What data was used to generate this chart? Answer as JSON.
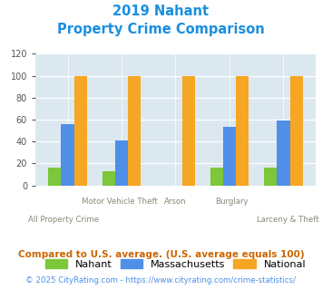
{
  "title_line1": "2019 Nahant",
  "title_line2": "Property Crime Comparison",
  "title_color": "#1a8fe0",
  "categories": [
    "All Property Crime",
    "Motor Vehicle Theft",
    "Arson",
    "Burglary",
    "Larceny & Theft"
  ],
  "nahant": [
    16,
    13,
    0,
    16,
    16
  ],
  "massachusetts": [
    56,
    41,
    0,
    53,
    59
  ],
  "national": [
    100,
    100,
    100,
    100,
    100
  ],
  "bar_colors": {
    "nahant": "#7cc73a",
    "massachusetts": "#4f8fe8",
    "national": "#f5a623"
  },
  "ylim": [
    0,
    120
  ],
  "yticks": [
    0,
    20,
    40,
    60,
    80,
    100,
    120
  ],
  "background_color": "#dce8ef",
  "legend_labels": [
    "Nahant",
    "Massachusetts",
    "National"
  ],
  "top_labels": [
    "",
    "Motor Vehicle Theft",
    "Arson",
    "Burglary",
    ""
  ],
  "bottom_labels": [
    "All Property Crime",
    "",
    "",
    "",
    "Larceny & Theft"
  ],
  "footnote1": "Compared to U.S. average. (U.S. average equals 100)",
  "footnote2": "© 2025 CityRating.com - https://www.cityrating.com/crime-statistics/",
  "footnote1_color": "#cc6600",
  "footnote2_color": "#4f8fe8"
}
